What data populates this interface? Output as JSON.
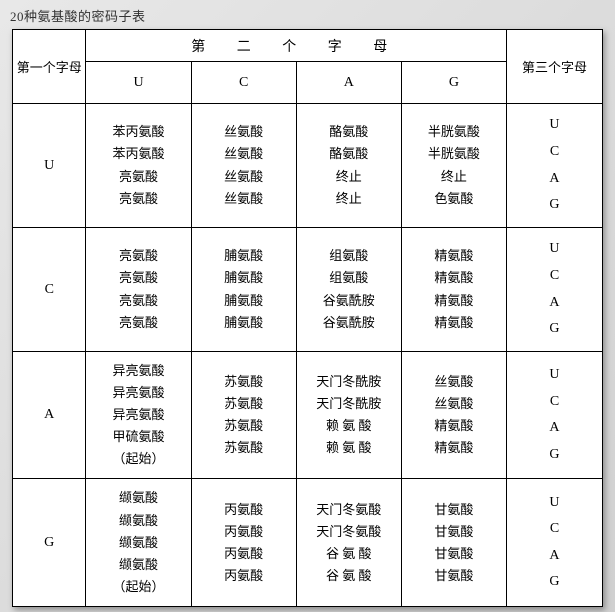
{
  "colors": {
    "bg_grad_from": "#e8e8e8",
    "bg_grad_to": "#d0d0d0",
    "table_bg": "#ffffff",
    "border": "#000000",
    "text": "#000000",
    "title_text": "#333333"
  },
  "title": "20种氨基酸的密码子表",
  "headers": {
    "first": "第一个字母",
    "second": "第 二 个 字 母",
    "third": "第三个字母",
    "second_sub": [
      "U",
      "C",
      "A",
      "G"
    ]
  },
  "third_letters": [
    "U",
    "C",
    "A",
    "G"
  ],
  "rows": [
    {
      "first": "U",
      "cells": [
        [
          "苯丙氨酸",
          "苯丙氨酸",
          "亮氨酸",
          "亮氨酸"
        ],
        [
          "丝氨酸",
          "丝氨酸",
          "丝氨酸",
          "丝氨酸"
        ],
        [
          "酪氨酸",
          "酪氨酸",
          "终止",
          "终止"
        ],
        [
          "半胱氨酸",
          "半胱氨酸",
          "终止",
          "色氨酸"
        ]
      ]
    },
    {
      "first": "C",
      "cells": [
        [
          "亮氨酸",
          "亮氨酸",
          "亮氨酸",
          "亮氨酸"
        ],
        [
          "脯氨酸",
          "脯氨酸",
          "脯氨酸",
          "脯氨酸"
        ],
        [
          "组氨酸",
          "组氨酸",
          "谷氨酰胺",
          "谷氨酰胺"
        ],
        [
          "精氨酸",
          "精氨酸",
          "精氨酸",
          "精氨酸"
        ]
      ]
    },
    {
      "first": "A",
      "cells": [
        [
          "异亮氨酸",
          "异亮氨酸",
          "异亮氨酸",
          "甲硫氨酸",
          "（起始）"
        ],
        [
          "苏氨酸",
          "苏氨酸",
          "苏氨酸",
          "苏氨酸"
        ],
        [
          "天门冬酰胺",
          "天门冬酰胺",
          "赖 氨 酸",
          "赖 氨 酸"
        ],
        [
          "丝氨酸",
          "丝氨酸",
          "精氨酸",
          "精氨酸"
        ]
      ]
    },
    {
      "first": "G",
      "cells": [
        [
          "缬氨酸",
          "缬氨酸",
          "缬氨酸",
          "缬氨酸",
          "（起始）"
        ],
        [
          "丙氨酸",
          "丙氨酸",
          "丙氨酸",
          "丙氨酸"
        ],
        [
          "天门冬氨酸",
          "天门冬氨酸",
          "谷 氨 酸",
          "谷 氨 酸"
        ],
        [
          "甘氨酸",
          "甘氨酸",
          "甘氨酸",
          "甘氨酸"
        ]
      ]
    }
  ]
}
